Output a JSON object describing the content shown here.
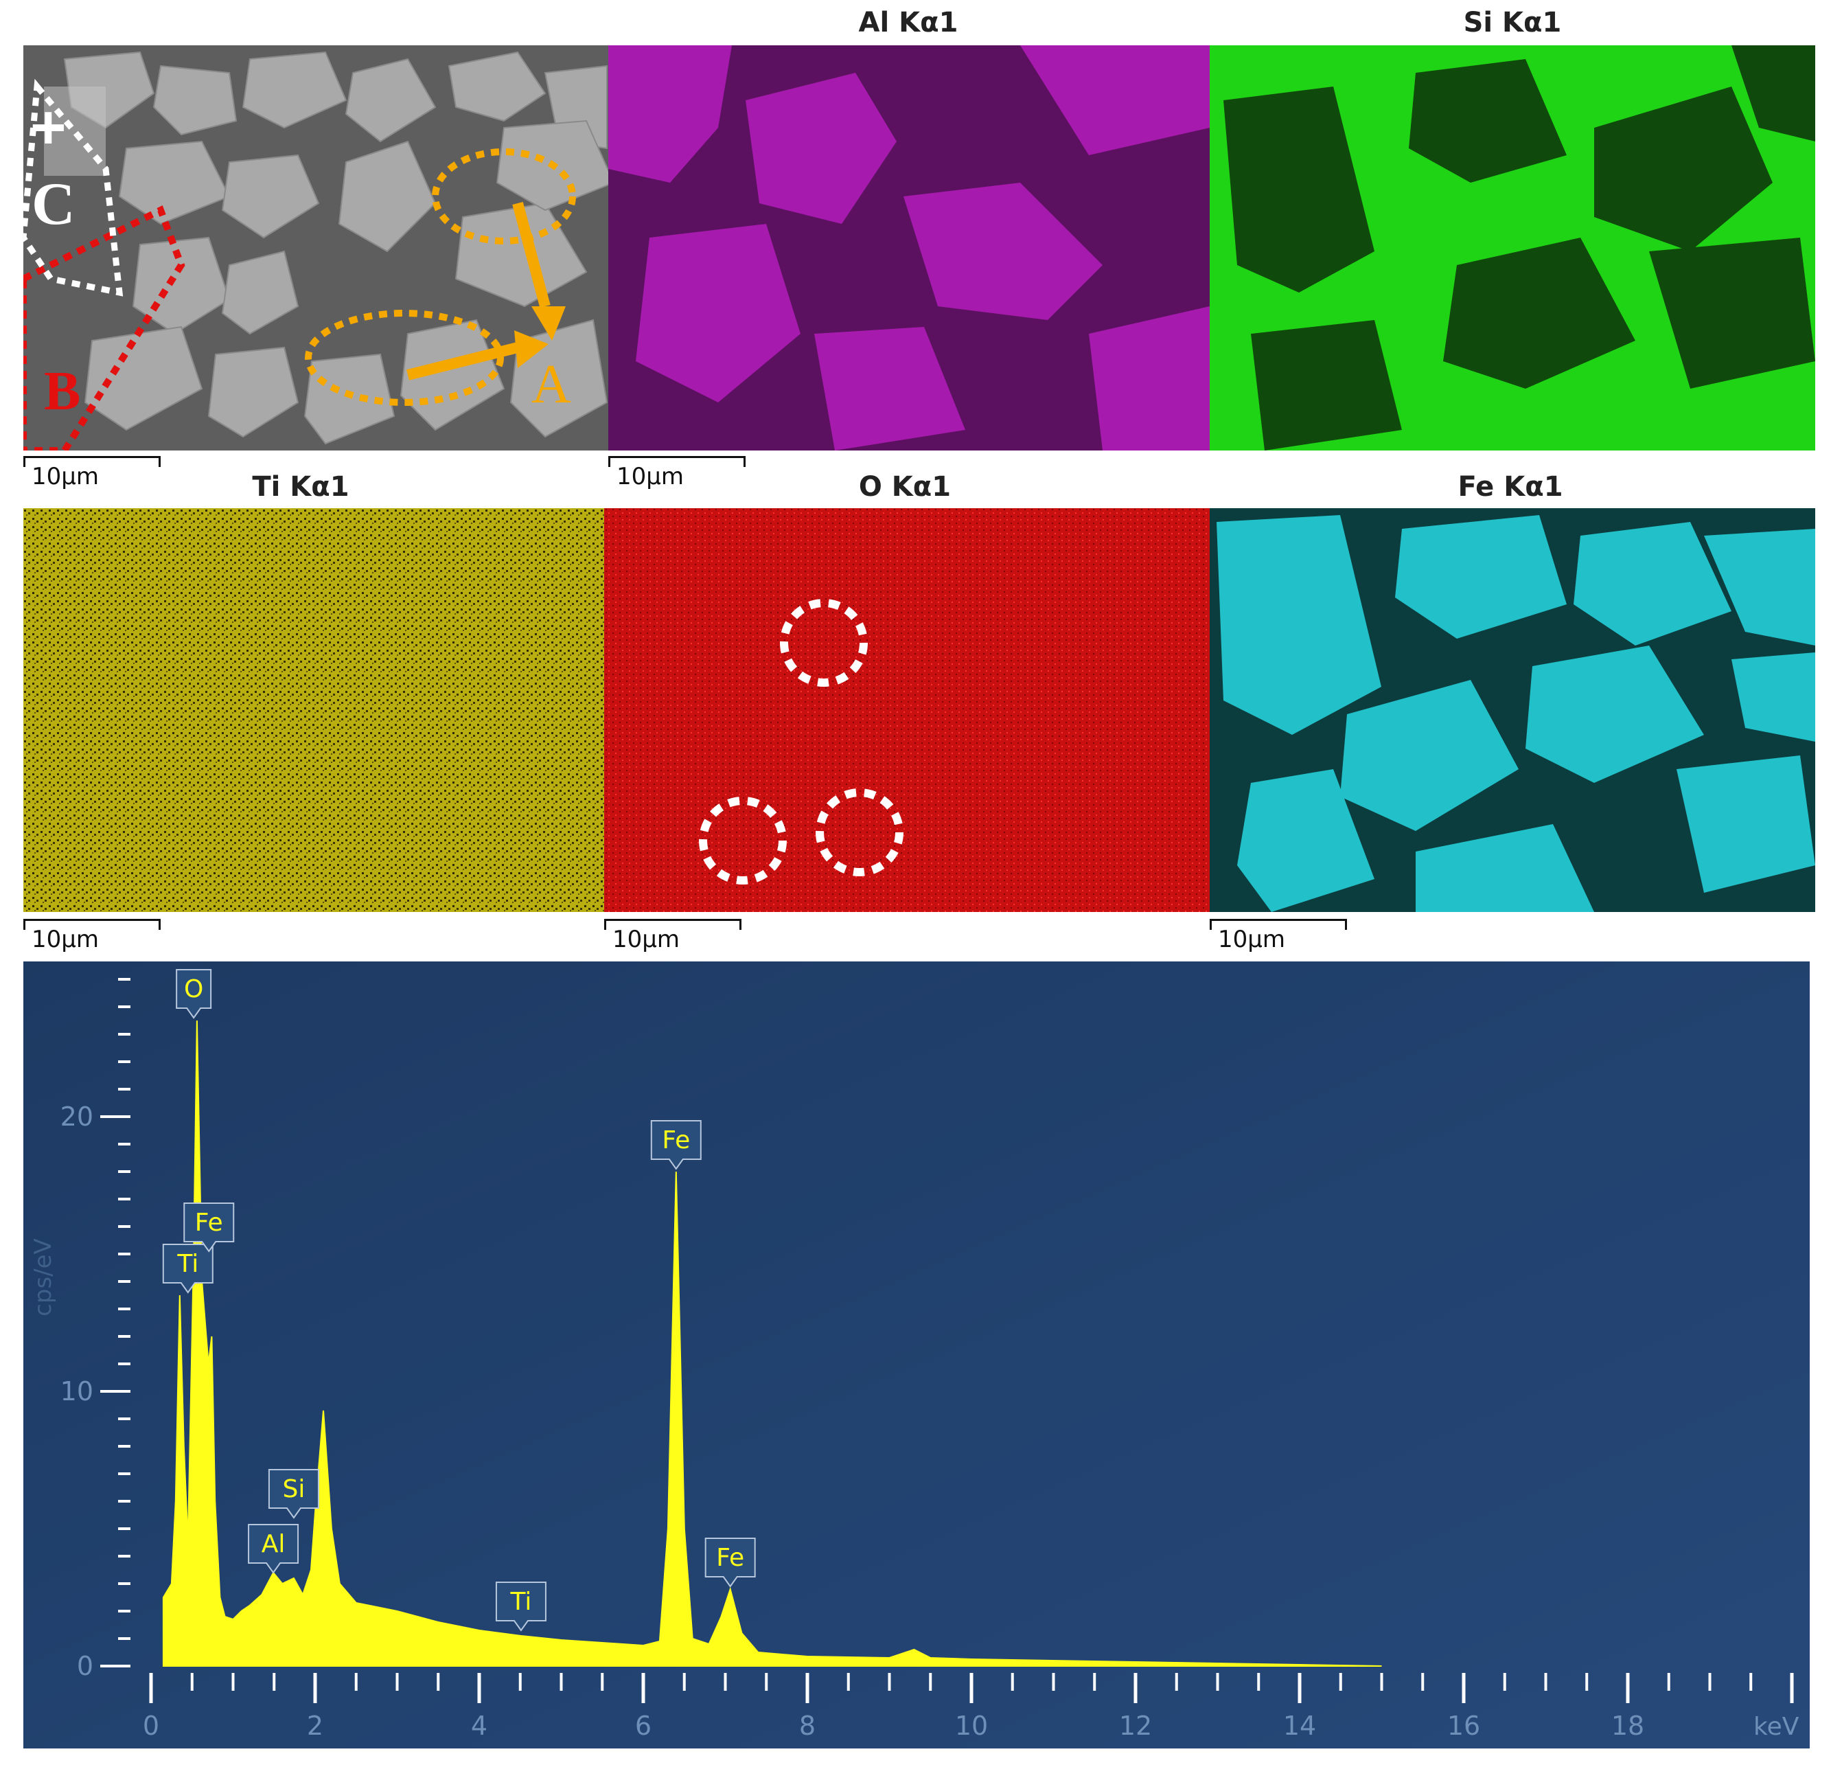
{
  "maps": {
    "sem": {
      "title": "",
      "scale": "10μm",
      "markers": {
        "a": "A",
        "b": "B",
        "c": "C",
        "cross": "+"
      }
    },
    "al": {
      "title": "Al Kα1",
      "scale": "10μm",
      "color": "#c020c8"
    },
    "si": {
      "title": "Si Kα1",
      "scale": "",
      "color": "#1fd414"
    },
    "ti": {
      "title": "Ti Kα1",
      "scale": "10μm",
      "color": "#c9c012"
    },
    "o": {
      "title": "O Kα1",
      "scale": "10μm",
      "color": "#d51212"
    },
    "fe": {
      "title": "Fe Kα1",
      "scale": "10μm",
      "color": "#22c0c8"
    }
  },
  "chart_data": {
    "type": "area",
    "title": "",
    "xlabel": "keV",
    "ylabel": "cps/eV",
    "xlim": [
      0,
      20
    ],
    "ylim": [
      0,
      25
    ],
    "x_ticks": [
      "0",
      "2",
      "4",
      "6",
      "8",
      "10",
      "12",
      "14",
      "16",
      "18"
    ],
    "y_ticks": [
      "0",
      "10",
      "20"
    ],
    "fill_color": "#ffff1a",
    "background": "#22416a",
    "x": [
      0.15,
      0.25,
      0.3,
      0.35,
      0.4,
      0.45,
      0.52,
      0.56,
      0.62,
      0.7,
      0.74,
      0.78,
      0.84,
      0.9,
      1.0,
      1.1,
      1.2,
      1.35,
      1.49,
      1.6,
      1.74,
      1.85,
      1.95,
      2.01,
      2.1,
      2.2,
      2.3,
      2.5,
      3.0,
      3.5,
      4.0,
      4.51,
      5.0,
      5.5,
      6.0,
      6.2,
      6.3,
      6.4,
      6.5,
      6.6,
      6.8,
      6.95,
      7.06,
      7.2,
      7.4,
      8.0,
      9.0,
      9.3,
      9.5,
      10.0,
      12.0,
      14.0,
      15.0
    ],
    "y": [
      2.5,
      3.0,
      6.0,
      13.5,
      8.0,
      4.5,
      15.0,
      23.5,
      14.0,
      11.0,
      12.0,
      6.0,
      2.5,
      1.8,
      1.7,
      2.0,
      2.2,
      2.6,
      3.4,
      3.0,
      3.2,
      2.6,
      3.5,
      6.0,
      9.3,
      5.0,
      3.0,
      2.3,
      2.0,
      1.6,
      1.3,
      1.1,
      0.95,
      0.85,
      0.75,
      0.9,
      5.0,
      18.0,
      5.0,
      1.0,
      0.8,
      1.8,
      2.8,
      1.2,
      0.5,
      0.35,
      0.3,
      0.6,
      0.3,
      0.25,
      0.15,
      0.05,
      0.0
    ],
    "annotations": [
      {
        "label": "O",
        "x": 0.52,
        "y": 23.5
      },
      {
        "label": "Ti",
        "x": 0.45,
        "y": 13.5
      },
      {
        "label": "Fe",
        "x": 0.705,
        "y": 15.0
      },
      {
        "label": "Al",
        "x": 1.49,
        "y": 3.3
      },
      {
        "label": "Si",
        "x": 1.74,
        "y": 5.3
      },
      {
        "label": "Ti",
        "x": 4.51,
        "y": 1.2
      },
      {
        "label": "Fe",
        "x": 6.4,
        "y": 18.0
      },
      {
        "label": "Fe",
        "x": 7.06,
        "y": 2.8
      }
    ]
  }
}
